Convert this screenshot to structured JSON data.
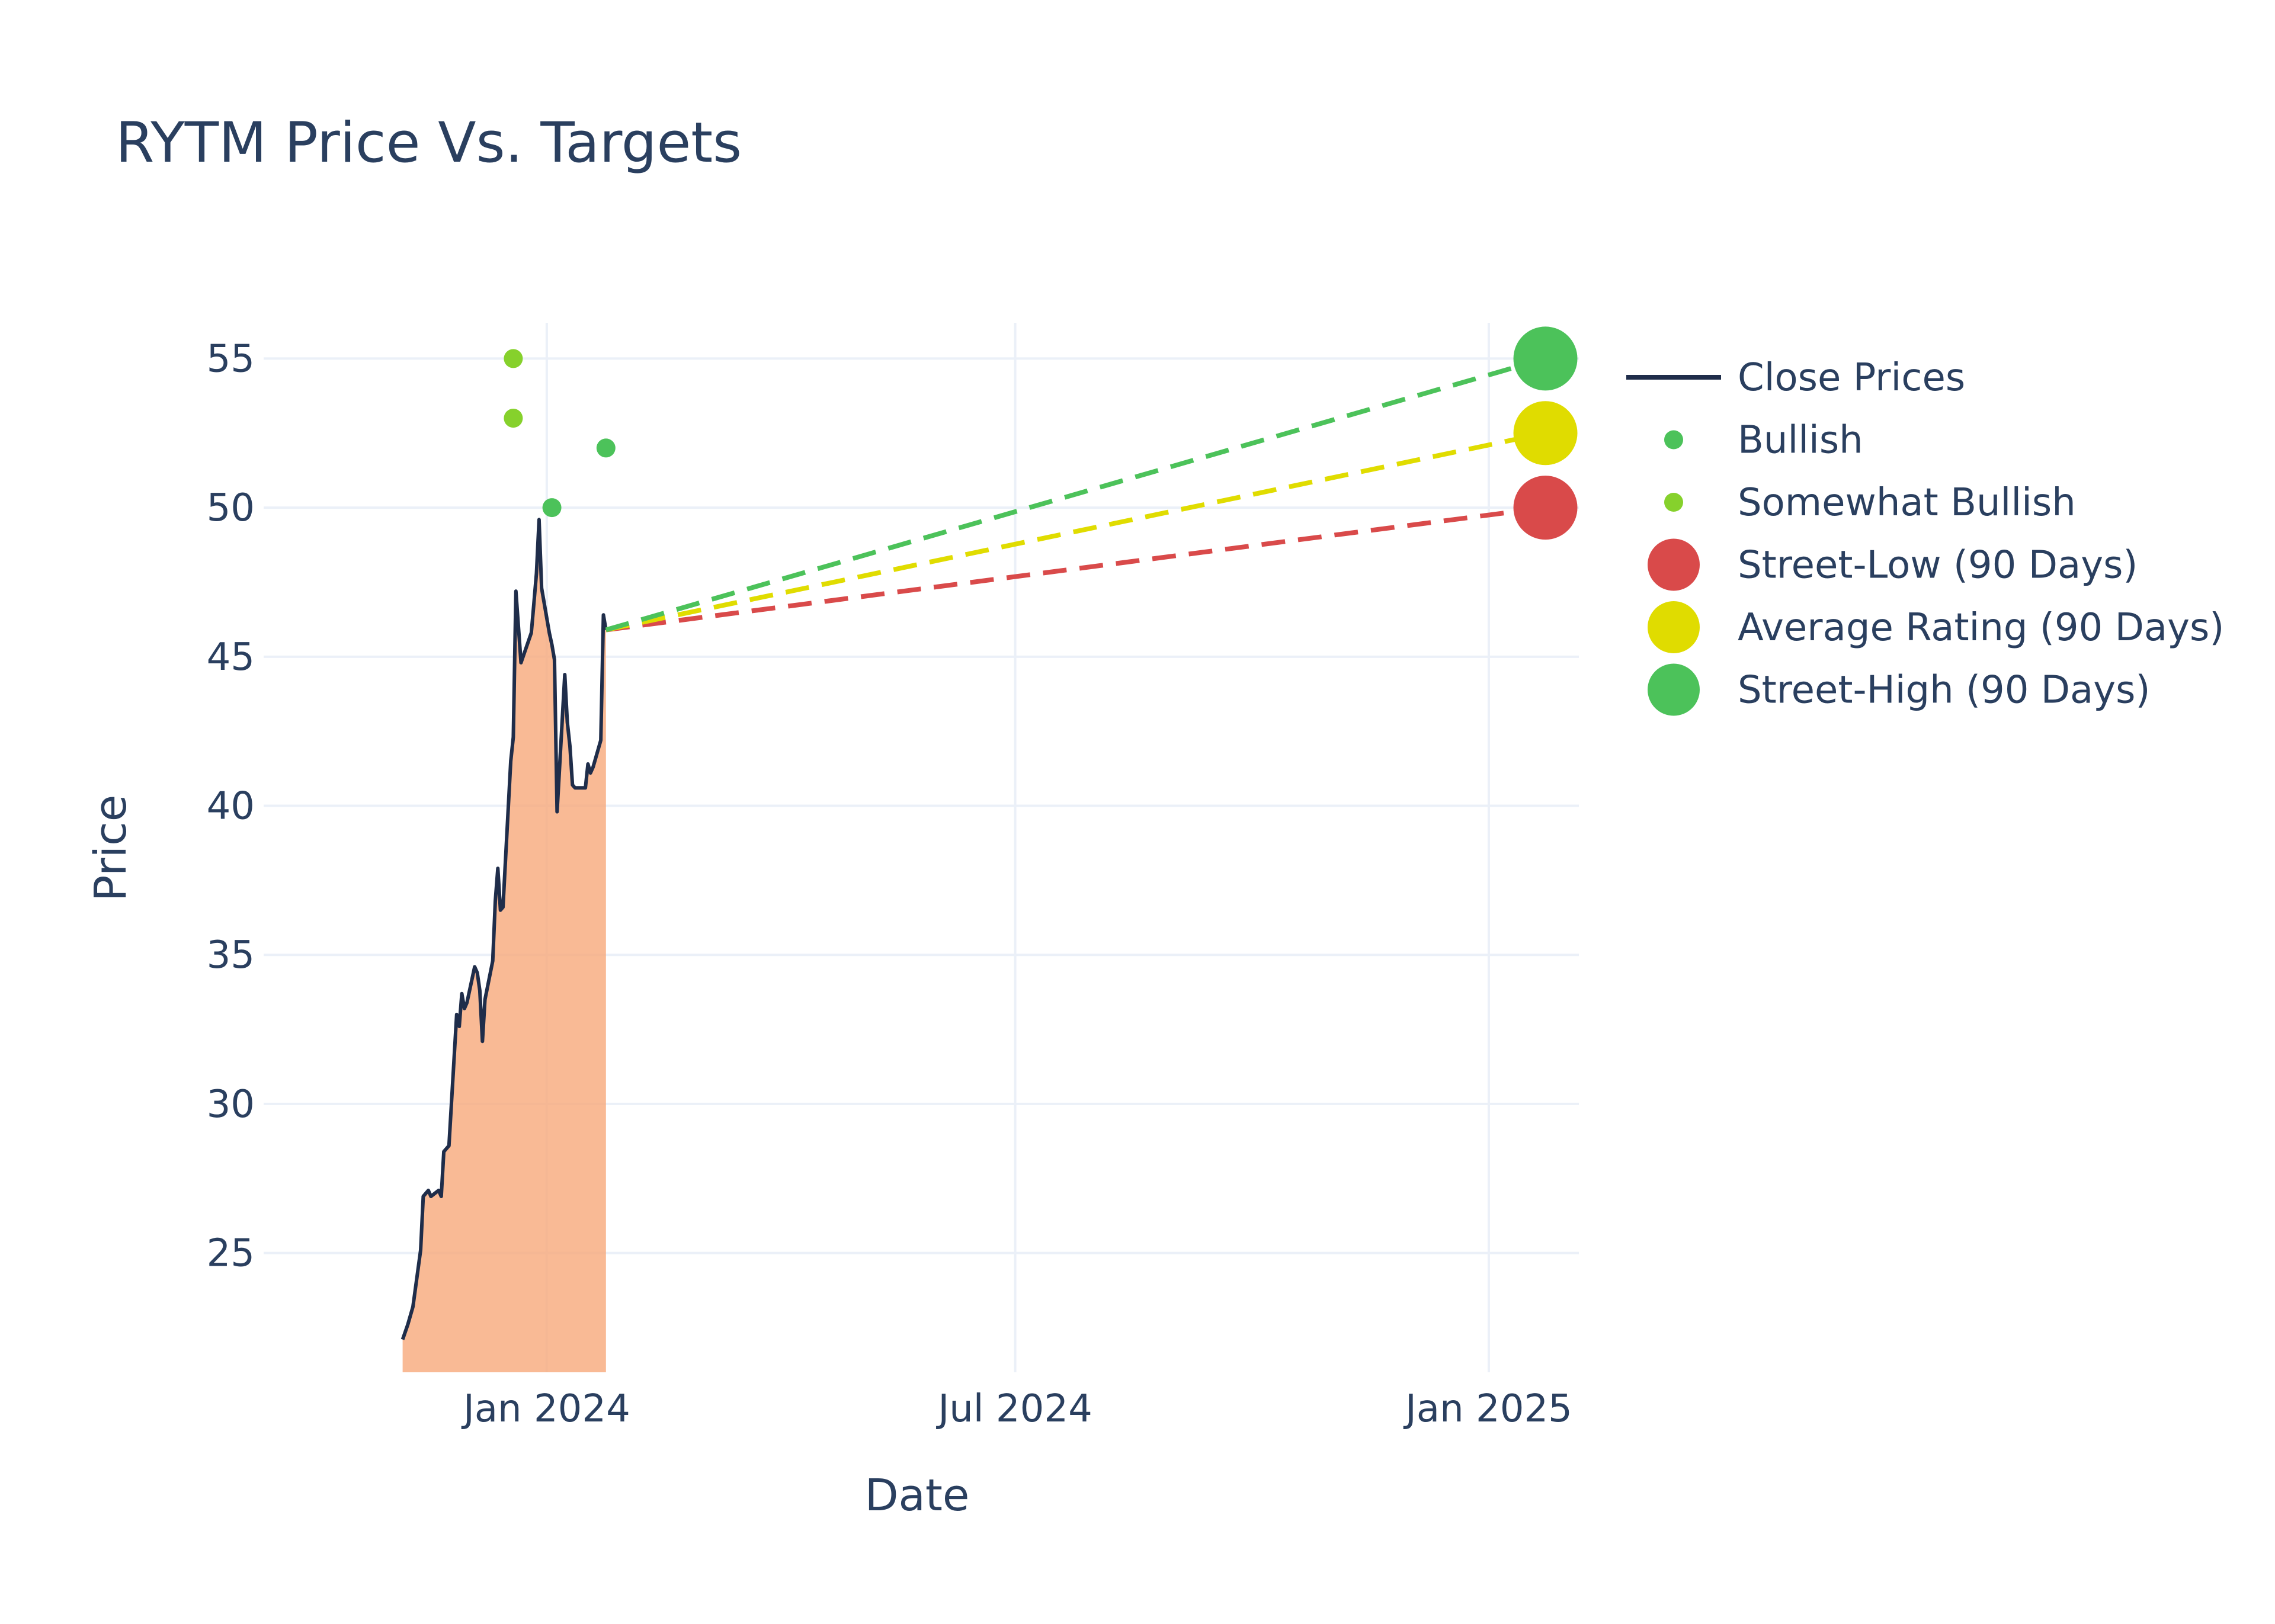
{
  "chart_data": {
    "type": "line",
    "title": "RYTM Price Vs. Targets",
    "xlabel": "Date",
    "ylabel": "Price",
    "x_type": "date",
    "xlim": [
      "2023-09-13",
      "2025-02-05"
    ],
    "ylim": [
      21,
      56.2
    ],
    "x_ticks": [
      {
        "date": "2024-01-01",
        "label": "Jan 2024"
      },
      {
        "date": "2024-07-01",
        "label": "Jul 2024"
      },
      {
        "date": "2025-01-01",
        "label": "Jan 2025"
      }
    ],
    "y_ticks": [
      25,
      30,
      35,
      40,
      45,
      50,
      55
    ],
    "grid": true,
    "legend_position": "right",
    "close_prices": {
      "name": "Close Prices",
      "line_color": "#1f2d4a",
      "fill_color": "#f7a97a",
      "points": [
        [
          "2023-11-06",
          22.1
        ],
        [
          "2023-11-08",
          22.6
        ],
        [
          "2023-11-10",
          23.2
        ],
        [
          "2023-11-13",
          25.1
        ],
        [
          "2023-11-14",
          26.9
        ],
        [
          "2023-11-16",
          27.1
        ],
        [
          "2023-11-17",
          26.9
        ],
        [
          "2023-11-20",
          27.1
        ],
        [
          "2023-11-21",
          26.9
        ],
        [
          "2023-11-22",
          28.4
        ],
        [
          "2023-11-24",
          28.6
        ],
        [
          "2023-11-27",
          33.0
        ],
        [
          "2023-11-28",
          32.6
        ],
        [
          "2023-11-29",
          33.7
        ],
        [
          "2023-11-30",
          33.2
        ],
        [
          "2023-12-01",
          33.4
        ],
        [
          "2023-12-04",
          34.6
        ],
        [
          "2023-12-05",
          34.4
        ],
        [
          "2023-12-06",
          33.8
        ],
        [
          "2023-12-07",
          32.1
        ],
        [
          "2023-12-08",
          33.5
        ],
        [
          "2023-12-11",
          34.8
        ],
        [
          "2023-12-12",
          36.8
        ],
        [
          "2023-12-13",
          37.9
        ],
        [
          "2023-12-14",
          36.5
        ],
        [
          "2023-12-15",
          36.6
        ],
        [
          "2023-12-18",
          41.5
        ],
        [
          "2023-12-19",
          42.3
        ],
        [
          "2023-12-20",
          47.2
        ],
        [
          "2023-12-21",
          46.0
        ],
        [
          "2023-12-22",
          44.8
        ],
        [
          "2023-12-26",
          45.8
        ],
        [
          "2023-12-27",
          46.8
        ],
        [
          "2023-12-28",
          47.8
        ],
        [
          "2023-12-29",
          49.6
        ],
        [
          "2023-12-30",
          47.3
        ],
        [
          "2024-01-02",
          45.8
        ],
        [
          "2024-01-03",
          45.4
        ],
        [
          "2024-01-04",
          44.9
        ],
        [
          "2024-01-05",
          39.8
        ],
        [
          "2024-01-08",
          44.4
        ],
        [
          "2024-01-09",
          42.8
        ],
        [
          "2024-01-10",
          42.0
        ],
        [
          "2024-01-11",
          40.7
        ],
        [
          "2024-01-12",
          40.6
        ],
        [
          "2024-01-16",
          40.6
        ],
        [
          "2024-01-17",
          41.4
        ],
        [
          "2024-01-18",
          41.1
        ],
        [
          "2024-01-19",
          41.3
        ],
        [
          "2024-01-22",
          42.2
        ],
        [
          "2024-01-23",
          46.4
        ],
        [
          "2024-01-24",
          45.9
        ]
      ]
    },
    "ratings": [
      {
        "name": "Bullish",
        "color": "#4cc25a",
        "points": [
          [
            "2024-01-03",
            50.0
          ],
          [
            "2024-01-24",
            52.0
          ]
        ]
      },
      {
        "name": "Somewhat Bullish",
        "color": "#86d12c",
        "points": [
          [
            "2023-12-19",
            55.0
          ],
          [
            "2023-12-19",
            53.0
          ]
        ]
      }
    ],
    "targets": [
      {
        "name": "Street-Low (90 Days)",
        "color": "#d94a4a",
        "from": [
          "2024-01-24",
          45.9
        ],
        "to": [
          "2025-01-23",
          50.0
        ]
      },
      {
        "name": "Average Rating (90 Days)",
        "color": "#e0dc00",
        "from": [
          "2024-01-24",
          45.9
        ],
        "to": [
          "2025-01-23",
          52.5
        ]
      },
      {
        "name": "Street-High (90 Days)",
        "color": "#4cc25a",
        "from": [
          "2024-01-24",
          45.9
        ],
        "to": [
          "2025-01-23",
          55.0
        ]
      }
    ],
    "legend": [
      {
        "label": "Close Prices",
        "kind": "line",
        "color": "#1f2d4a"
      },
      {
        "label": "Bullish",
        "kind": "dot-small",
        "color": "#4cc25a"
      },
      {
        "label": "Somewhat Bullish",
        "kind": "dot-small",
        "color": "#86d12c"
      },
      {
        "label": "Street-Low (90 Days)",
        "kind": "dot-large",
        "color": "#d94a4a"
      },
      {
        "label": "Average Rating (90 Days)",
        "kind": "dot-large",
        "color": "#e0dc00"
      },
      {
        "label": "Street-High (90 Days)",
        "kind": "dot-large",
        "color": "#4cc25a"
      }
    ]
  }
}
